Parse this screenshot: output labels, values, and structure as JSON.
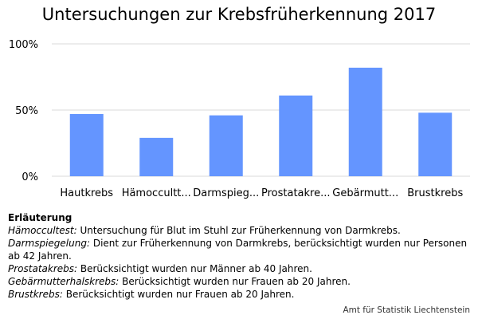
{
  "chart_data": {
    "type": "bar",
    "title": "Untersuchungen zur Krebsfrüherkennung 2017",
    "categories": [
      "Hautkrebs",
      "Hämoccultt...",
      "Darmspieg...",
      "Prostatakre...",
      "Gebärmutt...",
      "Brustkrebs"
    ],
    "values": [
      47,
      29,
      46,
      61,
      82,
      48
    ],
    "value_unit": "%",
    "ylim": [
      0,
      100
    ],
    "yticks": [
      "0%",
      "50%",
      "100%"
    ],
    "ytick_values": [
      0,
      50,
      100
    ],
    "grid": true,
    "bar_color": "#6495ff"
  },
  "notes": {
    "heading": "Erläuterung",
    "items": [
      {
        "term": "Hämoccultest:",
        "text": " Untersuchung für Blut im Stuhl zur Früherkennung von Darmkrebs."
      },
      {
        "term": "Darmspiegelung:",
        "text": " Dient zur Früherkennung von Darmkrebs, berücksichtigt wurden nur Personen ab 42 Jahren."
      },
      {
        "term": "Prostatakrebs:",
        "text": " Berücksichtigt wurden nur Männer ab 40 Jahren."
      },
      {
        "term": "Gebärmutterhalskrebs:",
        "text": " Berücksichtigt wurden nur Frauen ab 20 Jahren."
      },
      {
        "term": "Brustkrebs:",
        "text": " Berücksichtigt wurden nur Frauen ab 20 Jahren."
      }
    ]
  },
  "source": "Amt für Statistik Liechtenstein"
}
